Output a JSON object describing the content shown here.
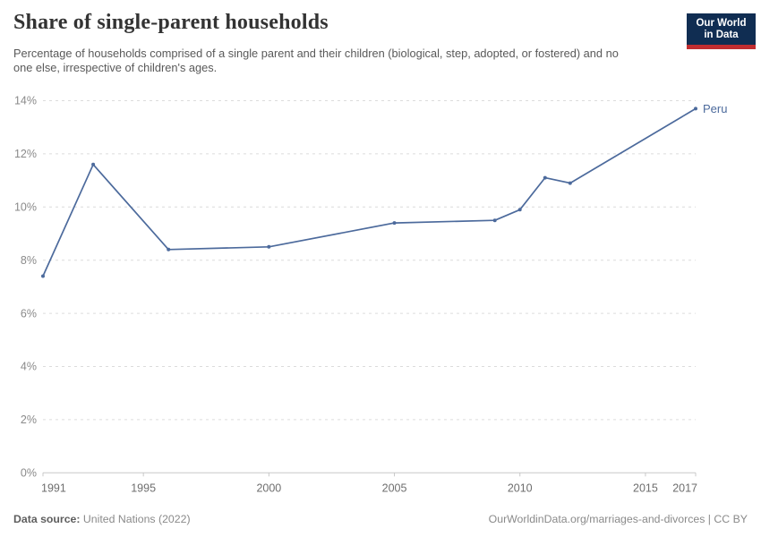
{
  "header": {
    "title": "Share of single-parent households",
    "subtitle": "Percentage of households comprised of a single parent and their children (biological, step, adopted, or fostered) and no one else, irrespective of children's ages."
  },
  "logo": {
    "line1": "Our World",
    "line2": "in Data",
    "bg_color": "#102d52",
    "stripe_color": "#c12d30"
  },
  "chart_data": {
    "type": "line",
    "title": "Share of single-parent households",
    "series": [
      {
        "name": "Peru",
        "color": "#4C6A9C",
        "x": [
          1991,
          1993,
          1996,
          2000,
          2005,
          2009,
          2010,
          2011,
          2012,
          2017
        ],
        "values": [
          7.4,
          11.6,
          8.4,
          8.5,
          9.4,
          9.5,
          9.9,
          11.1,
          10.9,
          13.7
        ]
      }
    ],
    "xlabel": "",
    "ylabel": "",
    "xlim": [
      1991,
      2017
    ],
    "ylim": [
      0,
      14
    ],
    "x_ticks": [
      1991,
      1995,
      2000,
      2005,
      2010,
      2015,
      2017
    ],
    "y_ticks": [
      0,
      2,
      4,
      6,
      8,
      10,
      12,
      14
    ],
    "y_tick_suffix": "%",
    "grid": "horizontal dashed",
    "legend": "entity label at end of line"
  },
  "footer": {
    "datasource_label": "Data source:",
    "datasource_value": "United Nations (2022)",
    "attribution": "OurWorldinData.org/marriages-and-divorces | CC BY"
  }
}
